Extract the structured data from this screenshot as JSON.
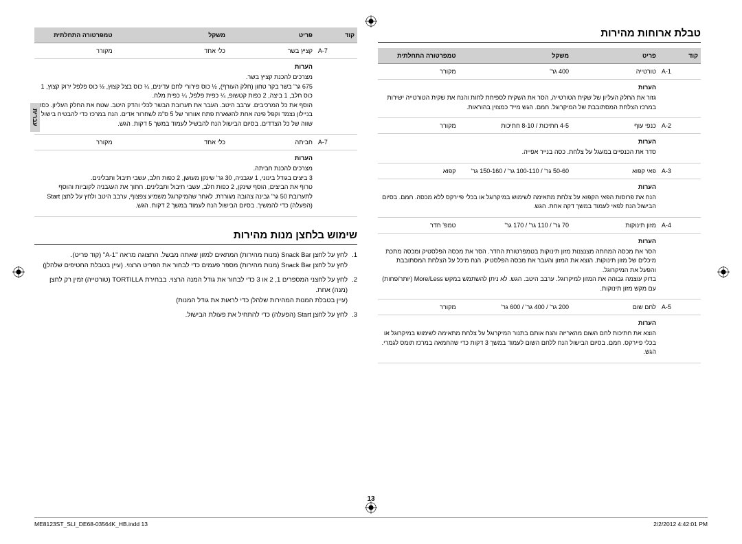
{
  "side_tab": "עברית",
  "page_number": "13",
  "footer_left": "ME8123ST_SLI_DE68-03564K_HB.indd   13",
  "footer_right": "2/2/2012   4:42:01 PM",
  "headers": {
    "code": "קוד",
    "item": "פריט",
    "weight": "משקל",
    "temp": "טמפרטורה התחלתית",
    "notes": "הערות"
  },
  "right": {
    "rows": [
      {
        "code": "A-7",
        "item": "קציץ בשר",
        "weight": "כלי אחד",
        "temp": "מקורר",
        "notes_title": "מצרכים להכנת קציץ בשר.",
        "notes": "675 גר' בשר בקר טחון (חלק העורף), ½ כוס פירורי לחם עדינים, ¼ כוס בצל קצוץ, ½ כוס פלפל ירוק קצוץ, 1 כוס חלב, 1 ביצה, 2 כפות קטשופ, ¼ כפית פלפל, ¼ כפית מלח.\nהוסף את כל המרכיבים. ערבב היטב. העבר את תערובת הבשר לכלי והדק היטב. שטח את החלק העליון. כסה בניילון נצמד וקפל פינה אחת להשארת פתח אוורור של 5 ס\"מ לשחרור אדים. הנח במרכז כדי להבטיח בישול שווה של כל הצדדים. בסיום הבישול הנח להבשיל לעמוד במשך 5 דקות. הגש."
      },
      {
        "code": "A-7",
        "item": "חביתה",
        "weight": "כלי אחד",
        "temp": "מקורר",
        "notes_title": "מצרכים להכנת חביתה.",
        "notes": "3 ביצים בגודל בינוני, 1 עגבניה, 30 גר' שינקן מעושן, 2 כפות חלב, עשבי תיבול ותבלינים.\nטרוף את הביצים, הוסף שינקן, 2 כפות חלב, עשבי תיבול ותבלינים. חתוך את העגבניה לקוביות והוסף לתערובת 50 גר' גבינה צהובה מגוררת. לאחר שהמיקרוגל משמיע צפצוף, ערבב היטב ולחץ על לחצן Start (הפעלה) כדי להמשיך. בסיום הבישול הנח לעמוד במשך 2 דקות. הגש."
      }
    ],
    "section_title": "שימוש בלחצן מנות מהירות",
    "instructions": [
      "לחץ על לחצן Snack Bar (מנות מהירות) המתאים למזון שאתה מבשל. התצוגה מראה \"A-1\" (קוד פריט).\nלחץ על לחצן Snack Bar (מנות מהירות) מספר פעמים כדי לבחור את הפריט הרצוי. (עיין בטבלת החטיפים שלהלן)",
      "לחץ על לחצני המספרים 1, 2 או 3 כדי לבחור את גודל המנה הרצוי. בבחירת TORTILLA (טורטייה) זמין רק לחצן (מנה) אחת.\n(עיין בטבלת המנות המהירות שלהלן כדי לראות את גודל המנות)",
      "לחץ על לחצן Start (הפעלה) כדי להתחיל את פעולת הבישול."
    ]
  },
  "left": {
    "title": "טבלת ארוחות מהירות",
    "rows": [
      {
        "code": "A-1",
        "item": "טורטייה",
        "weight": "400 גר'",
        "temp": "מקורר",
        "notes": "גזור את החלק העליון של שקית הטורטייה, הסר את השקית לספיחת לחות והנח את שקית הטורטייה ישירות במרכז הצלחת המסתובבת של המיקרוגל. חמם. הגש מייד כמצוין בהוראות."
      },
      {
        "code": "A-2",
        "item": "כנפי עוף",
        "weight": "4-5 חתיכות / 8-10 חתיכות",
        "temp": "מקורר",
        "notes": "סדר את הכנפיים במעגל על צלחת. כסה בנייר אפייה."
      },
      {
        "code": "A-3",
        "item": "פאי קפוא",
        "weight": "50-60 גר' / 100-110 גר' / 150-160 גר'",
        "temp": "קפוא",
        "notes": "הנח את פרוסות הפאי הקפוא על צלחת מתאימה לשימוש במיקרוגל או בכלי פיירקס ללא מכסה. חמם. בסיום הבישול הנח לפאי לעמוד במשך דקה אחת. הגש."
      },
      {
        "code": "A-4",
        "item": "מזון תינוקות",
        "weight": "70 גר' / 110 גר' / 170 גר'",
        "temp": "טמפ' חדר",
        "notes": "הסר את מכסה המחתה מצנצנות מזון תינוקות בטמפרטורת החדר. הסר את מכסה הפלסטיק ומכסה מתכת מיכלים של מזון תינוקות. הוצא את המזון והעבר את מכסה הפלסטיק. הנח מיכל על הצלחת המסתובבת והפעל את המיקרוגל.\nבדוק עוצמה גבוהה את המזון למיקרוגל. ערבב היטב. הגש. לא ניתן להשתמש במקש More/Less (יותר/פחות) עם מקש מזון תינוקות."
      },
      {
        "code": "A-5",
        "item": "לחם שום",
        "weight": "200 גר' / 400 גר' / 600 גר'",
        "temp": "מקורר",
        "notes": "הוצא את חתיכות לחם השום מהאריזה והנח אותם בתנור המיקרוגל על צלחת מתאימה לשימוש במיקרוגל או בכלי פיירקס. חמם. בסיום הבישול הנח ללחם השום לעמוד במשך 3 דקות כדי שהחמאה במרכז תומס לגמרי. הגש."
      }
    ]
  }
}
